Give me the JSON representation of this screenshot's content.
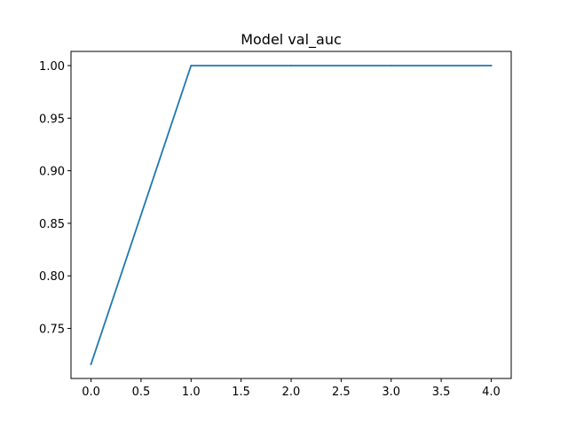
{
  "chart_data": {
    "type": "line",
    "title": "Model val_auc",
    "xlabel": "",
    "ylabel": "",
    "xlim": [
      -0.2,
      4.2
    ],
    "ylim": [
      0.7024,
      1.0135
    ],
    "x_ticks": [
      0.0,
      0.5,
      1.0,
      1.5,
      2.0,
      2.5,
      3.0,
      3.5,
      4.0
    ],
    "x_tick_labels": [
      "0.0",
      "0.5",
      "1.0",
      "1.5",
      "2.0",
      "2.5",
      "3.0",
      "3.5",
      "4.0"
    ],
    "y_ticks": [
      0.75,
      0.8,
      0.85,
      0.9,
      0.95,
      1.0
    ],
    "y_tick_labels": [
      "0.75",
      "0.80",
      "0.85",
      "0.90",
      "0.95",
      "1.00"
    ],
    "grid": false,
    "series": [
      {
        "x": [
          0,
          1,
          2,
          3,
          4
        ],
        "values": [
          0.716,
          1.0,
          1.0,
          1.0,
          1.0
        ],
        "color": "#1f77b4"
      }
    ]
  }
}
